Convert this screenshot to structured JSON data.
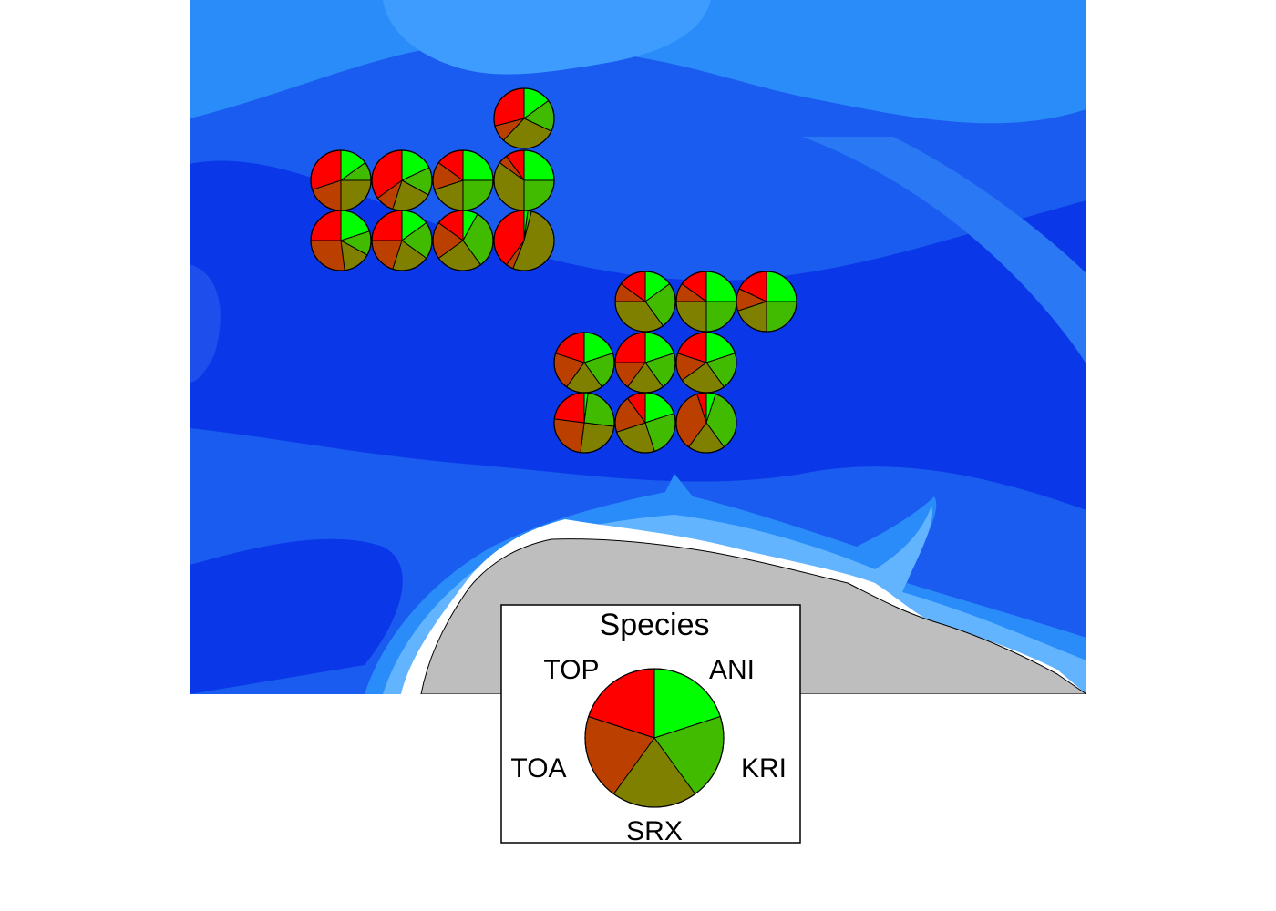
{
  "legend": {
    "title": "Species",
    "slices": [
      {
        "code": "ANI",
        "color": "#00ff00",
        "share": 0.2
      },
      {
        "code": "KRI",
        "color": "#40bb00",
        "share": 0.2
      },
      {
        "code": "SRX",
        "color": "#808000",
        "share": 0.2
      },
      {
        "code": "TOA",
        "color": "#bb4000",
        "share": 0.2
      },
      {
        "code": "TOP",
        "color": "#ff0000",
        "share": 0.2
      }
    ]
  },
  "colors": {
    "deep_ocean": "#0a38e8",
    "ocean": "#1a5cf0",
    "shelf": "#2a8cf8",
    "shallow": "#63b4ff",
    "ice": "#ffffff",
    "land": "#bebebe",
    "outline": "#000000"
  },
  "species_order": [
    "ANI",
    "KRI",
    "SRX",
    "TOA",
    "TOP"
  ],
  "pies": [
    {
      "id": "n1",
      "values": [
        0.15,
        0.17,
        0.3,
        0.09,
        0.29
      ]
    },
    {
      "id": "a1",
      "values": [
        0.15,
        0.1,
        0.25,
        0.2,
        0.3
      ]
    },
    {
      "id": "a2",
      "values": [
        0.18,
        0.15,
        0.22,
        0.1,
        0.35
      ]
    },
    {
      "id": "a3",
      "values": [
        0.25,
        0.25,
        0.2,
        0.15,
        0.15
      ]
    },
    {
      "id": "a4",
      "values": [
        0.25,
        0.25,
        0.35,
        0.05,
        0.1
      ]
    },
    {
      "id": "b1",
      "values": [
        0.2,
        0.13,
        0.15,
        0.27,
        0.25
      ]
    },
    {
      "id": "b2",
      "values": [
        0.15,
        0.2,
        0.2,
        0.2,
        0.25
      ]
    },
    {
      "id": "b3",
      "values": [
        0.08,
        0.32,
        0.25,
        0.2,
        0.15
      ]
    },
    {
      "id": "b4",
      "values": [
        0.02,
        0.02,
        0.52,
        0.04,
        0.4
      ]
    },
    {
      "id": "c1",
      "values": [
        0.15,
        0.25,
        0.35,
        0.1,
        0.15
      ]
    },
    {
      "id": "c2",
      "values": [
        0.25,
        0.25,
        0.25,
        0.1,
        0.15
      ]
    },
    {
      "id": "c3",
      "values": [
        0.25,
        0.25,
        0.2,
        0.12,
        0.18
      ]
    },
    {
      "id": "d1",
      "values": [
        0.2,
        0.2,
        0.2,
        0.2,
        0.2
      ]
    },
    {
      "id": "d2",
      "values": [
        0.2,
        0.2,
        0.2,
        0.15,
        0.25
      ]
    },
    {
      "id": "d3",
      "values": [
        0.2,
        0.2,
        0.25,
        0.15,
        0.2
      ]
    },
    {
      "id": "e1",
      "values": [
        0.02,
        0.25,
        0.25,
        0.25,
        0.23
      ]
    },
    {
      "id": "e2",
      "values": [
        0.2,
        0.25,
        0.25,
        0.2,
        0.1
      ]
    },
    {
      "id": "e3",
      "values": [
        0.05,
        0.35,
        0.2,
        0.35,
        0.05
      ]
    }
  ]
}
